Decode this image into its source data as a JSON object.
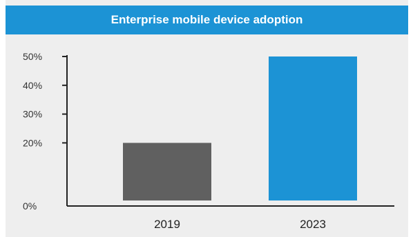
{
  "chart_data": {
    "type": "bar",
    "title": "Enterprise mobile device adoption",
    "categories": [
      "2019",
      "2023"
    ],
    "values": [
      20,
      50
    ],
    "colors": [
      "#606060",
      "#1c93d5"
    ],
    "ylim": [
      0,
      50
    ],
    "yticks": [
      0,
      20,
      30,
      40,
      50
    ],
    "ytick_labels": [
      "0%",
      "20%",
      "30%",
      "40%",
      "50%"
    ],
    "xlabel": "",
    "ylabel": "",
    "grid": false,
    "legend": "none",
    "title_bar_color": "#1c93d5"
  }
}
